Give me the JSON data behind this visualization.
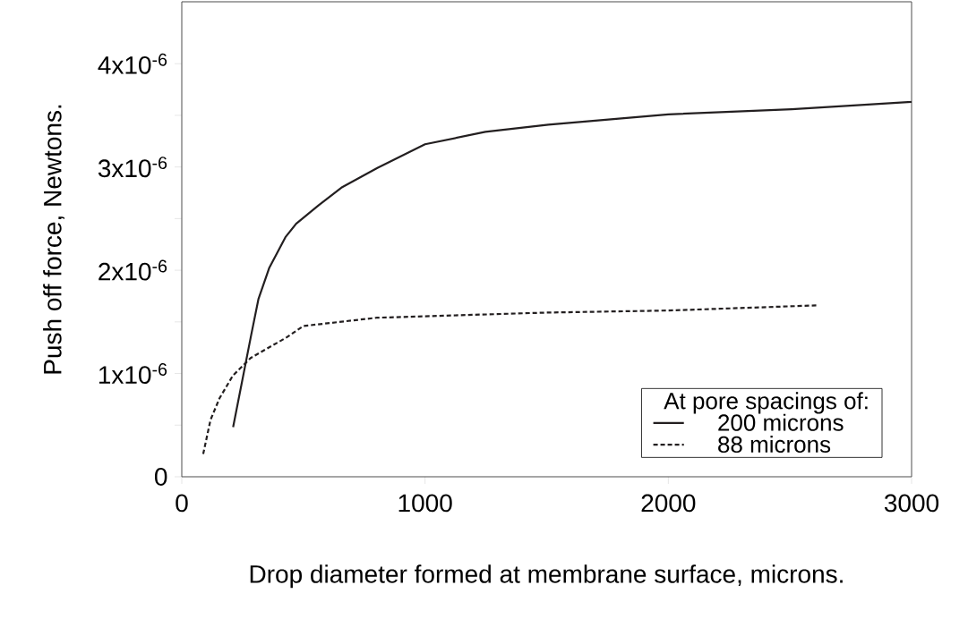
{
  "chart_data": {
    "type": "line",
    "xlabel": "Drop diameter formed at membrane surface, microns.",
    "ylabel": "Push off force, Newtons.",
    "legend_title": "At pore spacings of:",
    "legend": "bottom right",
    "xlim": [
      0,
      3000
    ],
    "ylim": [
      0,
      4.6e-06
    ],
    "xticks": [
      0,
      1000,
      2000,
      3000
    ],
    "yticks": [
      0,
      {
        "value": 5e-07,
        "label": null
      },
      {
        "value": 1e-06,
        "label": "1x10$^{-6}$"
      },
      {
        "value": 1.5e-06,
        "label": null
      },
      {
        "value": 2e-06,
        "label": "2x10$^{-6}$"
      },
      {
        "value": 2.5e-06,
        "label": null
      },
      {
        "value": 3e-06,
        "label": "3x10$^{-6}$"
      },
      {
        "value": 3.5e-06,
        "label": null
      },
      {
        "value": 4e-06,
        "label": "4x10$^{-6}$"
      }
    ],
    "series": [
      {
        "name": "200 microns",
        "color": "#231f20",
        "line_style": "solid",
        "x": [
          211,
          285,
          315,
          359,
          426,
          470,
          563,
          656,
          804,
          1000,
          1248,
          1507,
          2000,
          2507,
          3000
        ],
        "values": [
          4.8e-07,
          1.37e-06,
          1.72e-06,
          2.02e-06,
          2.32e-06,
          2.45e-06,
          2.63e-06,
          2.8e-06,
          2.99e-06,
          3.22e-06,
          3.34e-06,
          3.41e-06,
          3.51e-06,
          3.56e-06,
          3.63e-06
        ]
      },
      {
        "name": "88 microns",
        "color": "#231f20",
        "line_style": "dashed",
        "x": [
          88,
          118,
          155,
          210,
          283,
          431,
          500,
          800,
          1500,
          2000,
          2613
        ],
        "values": [
          2.2e-07,
          5.5e-07,
          7.6e-07,
          9.8e-07,
          1.15e-06,
          1.35e-06,
          1.46e-06,
          1.54e-06,
          1.59e-06,
          1.61e-06,
          1.66e-06
        ]
      }
    ]
  }
}
